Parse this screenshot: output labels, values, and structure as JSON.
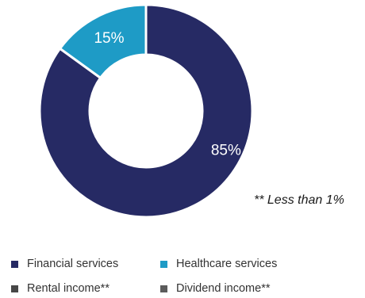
{
  "chart_data": {
    "type": "pie",
    "categories": [
      "Financial services",
      "Healthcare services",
      "Rental income**",
      "Dividend income**"
    ],
    "values": [
      85,
      15,
      0,
      0
    ],
    "value_labels": [
      "85%",
      "15%",
      "",
      ""
    ],
    "colors": [
      "#262a64",
      "#1e9bc6",
      "#474747",
      "#5c5c5c"
    ],
    "legend_position": "bottom",
    "donut": true,
    "annotation": "** Less than 1%"
  }
}
